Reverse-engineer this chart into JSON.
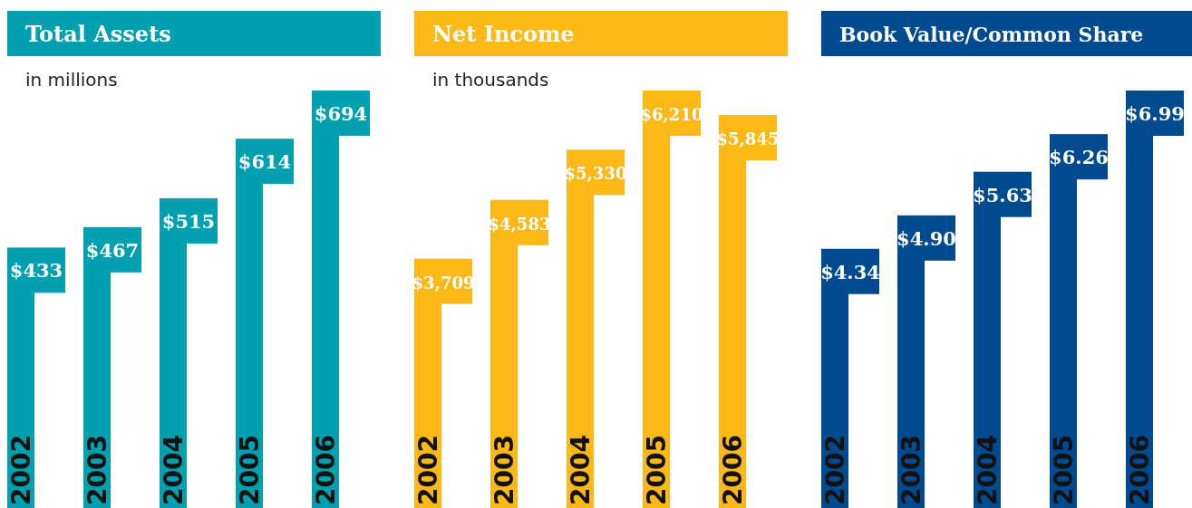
{
  "chart_data": [
    {
      "type": "bar",
      "title": "Total Assets",
      "subtitle": "in millions",
      "categories": [
        "2002",
        "2003",
        "2004",
        "2005",
        "2006"
      ],
      "values": [
        433,
        467,
        515,
        614,
        694
      ],
      "value_labels": [
        "$433",
        "$467",
        "$515",
        "$614",
        "$694"
      ],
      "color": "#00a0b0"
    },
    {
      "type": "bar",
      "title": "Net Income",
      "subtitle": "in thousands",
      "categories": [
        "2002",
        "2003",
        "2004",
        "2005",
        "2006"
      ],
      "values": [
        3709,
        4583,
        5330,
        6210,
        5845
      ],
      "value_labels": [
        "$3,709",
        "$4,583",
        "$5,330",
        "$6,210",
        "$5,845"
      ],
      "color": "#fbb817"
    },
    {
      "type": "bar",
      "title": "Book Value/Common Share",
      "categories": [
        "2002",
        "2003",
        "2004",
        "2005",
        "2006"
      ],
      "values": [
        4.34,
        4.9,
        5.63,
        6.26,
        6.99
      ],
      "value_labels": [
        "$4.34",
        "$4.90",
        "$5.63",
        "$6.26",
        "$6.99"
      ],
      "color": "#004a8f"
    }
  ]
}
